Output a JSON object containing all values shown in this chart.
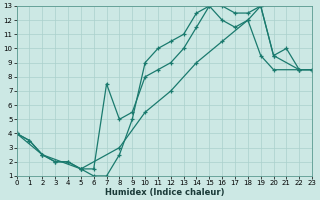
{
  "xlabel": "Humidex (Indice chaleur)",
  "xlim": [
    0,
    23
  ],
  "ylim": [
    1,
    13
  ],
  "xticks": [
    0,
    1,
    2,
    3,
    4,
    5,
    6,
    7,
    8,
    9,
    10,
    11,
    12,
    13,
    14,
    15,
    16,
    17,
    18,
    19,
    20,
    21,
    22,
    23
  ],
  "yticks": [
    1,
    2,
    3,
    4,
    5,
    6,
    7,
    8,
    9,
    10,
    11,
    12,
    13
  ],
  "line_color": "#1a7a6e",
  "bg_color": "#cce8e4",
  "grid_color": "#aad0cc",
  "line1_x": [
    0,
    1,
    2,
    3,
    4,
    5,
    6,
    7,
    8,
    9,
    10,
    11,
    12,
    13,
    14,
    15,
    16,
    17,
    18,
    19,
    20,
    21,
    22,
    23
  ],
  "line1_y": [
    4,
    3.5,
    2.5,
    2,
    2,
    1.5,
    1,
    1,
    2.5,
    5,
    9,
    10,
    10.5,
    11,
    12.5,
    13,
    13,
    12.5,
    12.5,
    13,
    9.5,
    10,
    8.5,
    8.5
  ],
  "line2_x": [
    0,
    1,
    2,
    3,
    4,
    5,
    6,
    7,
    8,
    9,
    10,
    11,
    12,
    13,
    14,
    15,
    16,
    17,
    18,
    19,
    20,
    22,
    23
  ],
  "line2_y": [
    4,
    3.5,
    2.5,
    2,
    2,
    1.5,
    1.5,
    7.5,
    5,
    5.5,
    8,
    8.5,
    9,
    10,
    11.5,
    13,
    12,
    11.5,
    12,
    9.5,
    8.5,
    8.5,
    8.5
  ],
  "line3_x": [
    0,
    2,
    5,
    8,
    10,
    12,
    14,
    16,
    18,
    19,
    20,
    22,
    23
  ],
  "line3_y": [
    4,
    2.5,
    1.5,
    3,
    5.5,
    7,
    9,
    10.5,
    12,
    13,
    9.5,
    8.5,
    8.5
  ]
}
